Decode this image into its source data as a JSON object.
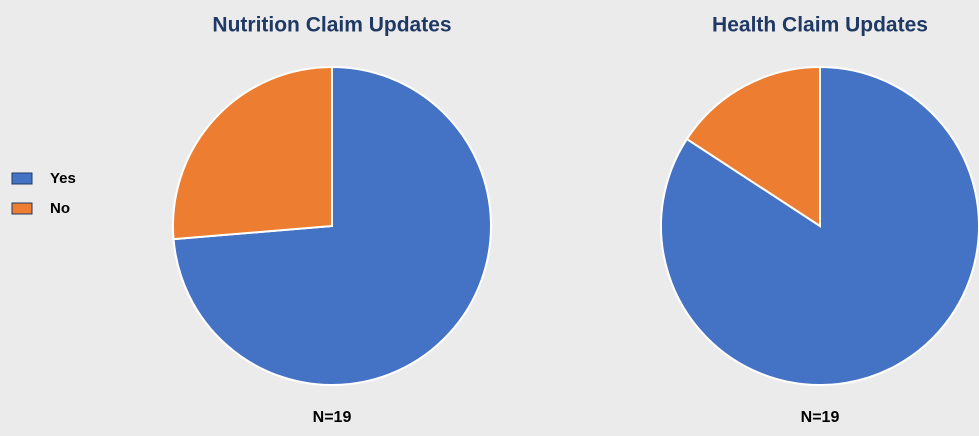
{
  "chart_data": [
    {
      "type": "pie",
      "title": "Nutrition Claim Updates",
      "categories": [
        "Yes",
        "No"
      ],
      "values": [
        14,
        5
      ],
      "colors": [
        "#4472c4",
        "#ed7d31"
      ],
      "annotation": "N=19",
      "legend": "left"
    },
    {
      "type": "pie",
      "title": "Health Claim Updates",
      "categories": [
        "Yes",
        "No"
      ],
      "values": [
        16,
        3
      ],
      "colors": [
        "#4472c4",
        "#ed7d31"
      ],
      "annotation": "N=19"
    }
  ]
}
